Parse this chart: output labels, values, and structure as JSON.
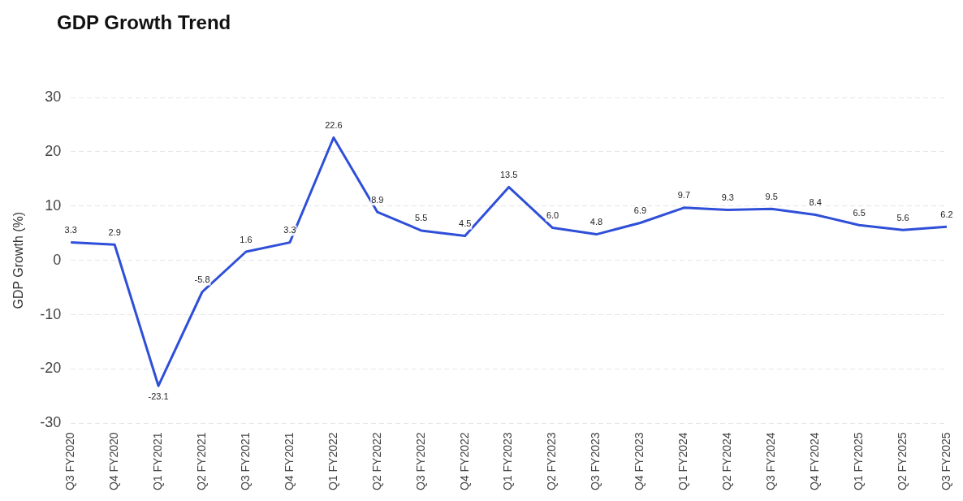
{
  "chart_data": {
    "type": "line",
    "title": "GDP Growth Trend",
    "ylabel": "GDP Growth (%)",
    "categories": [
      "Q3 FY2020",
      "Q4 FY2020",
      "Q1 FY2021",
      "Q2 FY2021",
      "Q3 FY2021",
      "Q4 FY2021",
      "Q1 FY2022",
      "Q2 FY2022",
      "Q3 FY2022",
      "Q4 FY2022",
      "Q1 FY2023",
      "Q2 FY2023",
      "Q3 FY2023",
      "Q4 FY2023",
      "Q1 FY2024",
      "Q2 FY2024",
      "Q3 FY2024",
      "Q4 FY2024",
      "Q1 FY2025",
      "Q2 FY2025",
      "Q3 FY2025"
    ],
    "series": [
      {
        "color": "#2f4fd8",
        "values": [
          3.3,
          2.9,
          -23.1,
          -5.8,
          1.6,
          3.3,
          22.6,
          8.9,
          5.5,
          4.5,
          13.5,
          6.0,
          4.8,
          6.9,
          9.7,
          9.3,
          9.5,
          8.4,
          6.5,
          5.6,
          6.2
        ],
        "value_labels": [
          "3.3",
          "2.9",
          "-23.1",
          "-5.8",
          "1.6",
          "3.3",
          "22.6",
          "8.9",
          "5.5",
          "4.5",
          "13.5",
          "6.0",
          "4.8",
          "6.9",
          "9.7",
          "9.3",
          "9.5",
          "8.4",
          "6.5",
          "5.6",
          "6.2"
        ]
      }
    ],
    "ylim": [
      -30,
      30
    ],
    "yticks": [
      -30,
      -20,
      -10,
      0,
      10,
      20,
      30
    ],
    "grid": "y",
    "legend": false,
    "marker": "none",
    "line_style": "solid"
  }
}
